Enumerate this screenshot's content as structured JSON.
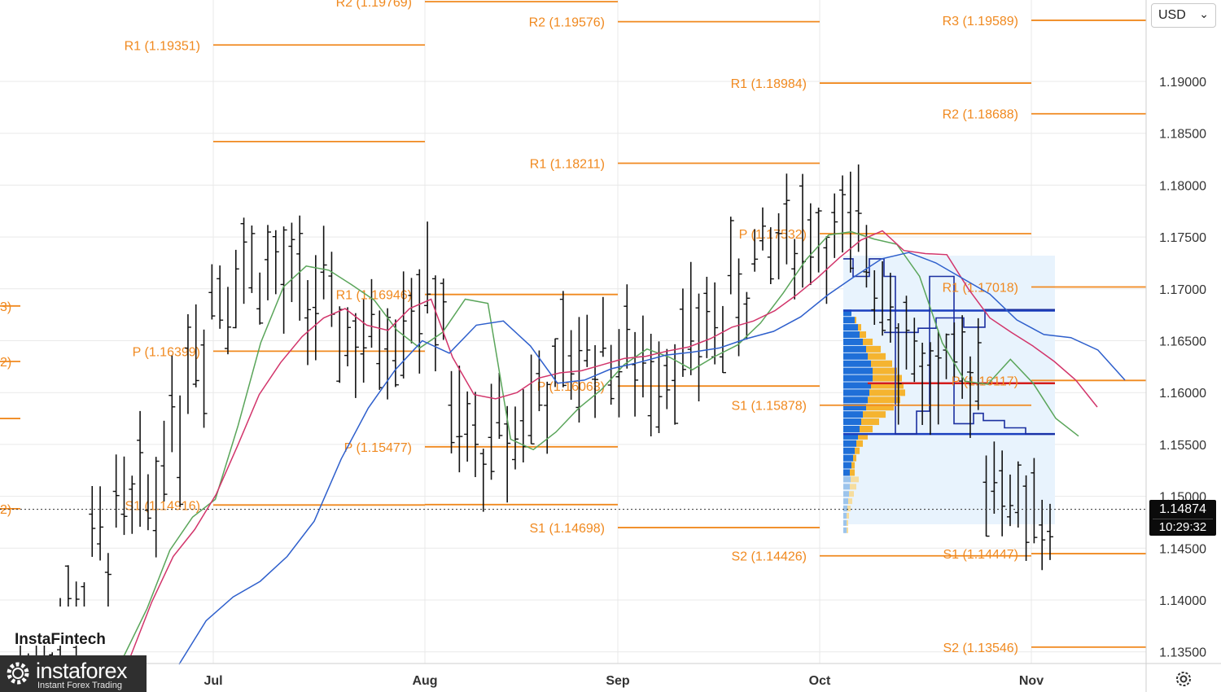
{
  "currency_selector": {
    "value": "USD"
  },
  "price_badge": {
    "price": "1.14874",
    "countdown": "10:29:32"
  },
  "branding": {
    "instafintech": "InstaFintech",
    "instaforex": "instaforex",
    "tagline": "Instant Forex Trading"
  },
  "icons": {
    "settings": "settings-gear-icon",
    "dropdown": "chevron-down-icon"
  },
  "colors": {
    "pivot": "#f0891f",
    "ma_fast": "#5aa55a",
    "ma_mid": "#d2356b",
    "ma_slow": "#2e5fcc",
    "profile_blue": "#1f6fd8",
    "profile_orange": "#f5b430",
    "value_area": "#e8f3fd",
    "poc": "#d41c1c",
    "range": "#1b2fa0"
  },
  "chart_data": {
    "type": "ohlc",
    "instrument_timeframe": "daily",
    "y_axis": {
      "ticks": [
        "1.13500",
        "1.14000",
        "1.14500",
        "1.15000",
        "1.15500",
        "1.16000",
        "1.16500",
        "1.17000",
        "1.17500",
        "1.18000",
        "1.18500",
        "1.19000"
      ],
      "ylim": [
        1.1325,
        1.2005
      ]
    },
    "x_axis": {
      "months": [
        "Jul",
        "Aug",
        "Sep",
        "Oct",
        "Nov"
      ]
    },
    "current_price": 1.14874,
    "pivot_levels": [
      {
        "period": "Jun",
        "levels": [
          {
            "name": "R1",
            "value": 1.16835,
            "label": "3)"
          },
          {
            "name": "P",
            "value": 1.1575,
            "label": ""
          },
          {
            "name": "S1",
            "value": 1.163,
            "label": "2)"
          },
          {
            "name": "S2",
            "value": 1.1488,
            "label": "2)"
          }
        ]
      },
      {
        "period": "Jul",
        "levels": [
          {
            "name": "R1",
            "value": 1.19351,
            "label": "R1 (1.19351)"
          },
          {
            "name": "R0",
            "value": 1.1842,
            "label": ""
          },
          {
            "name": "P",
            "value": 1.16399,
            "label": "P (1.16399)"
          },
          {
            "name": "S1",
            "value": 1.14916,
            "label": "S1 (1.14916)"
          }
        ]
      },
      {
        "period": "Aug",
        "levels": [
          {
            "name": "R2",
            "value": 1.19769,
            "label": "R2 (1.19769)"
          },
          {
            "name": "R1",
            "value": 1.16946,
            "label": "R1 (1.16946)"
          },
          {
            "name": "P",
            "value": 1.15477,
            "label": "P (1.15477)"
          },
          {
            "name": "S1",
            "value": 1.1492,
            "label": ""
          }
        ]
      },
      {
        "period": "Sep",
        "levels": [
          {
            "name": "R2",
            "value": 1.19576,
            "label": "R2 (1.19576)"
          },
          {
            "name": "R1",
            "value": 1.18211,
            "label": "R1 (1.18211)"
          },
          {
            "name": "P",
            "value": 1.16063,
            "label": "P (1.16063)"
          },
          {
            "name": "S1",
            "value": 1.14698,
            "label": "S1 (1.14698)"
          }
        ]
      },
      {
        "period": "Oct",
        "levels": [
          {
            "name": "R1",
            "value": 1.18984,
            "label": "R1 (1.18984)"
          },
          {
            "name": "P",
            "value": 1.17532,
            "label": "P (1.17532)"
          },
          {
            "name": "S1",
            "value": 1.15878,
            "label": "S1 (1.15878)"
          },
          {
            "name": "S2",
            "value": 1.14426,
            "label": "S2 (1.14426)"
          }
        ]
      },
      {
        "period": "Nov",
        "levels": [
          {
            "name": "R3",
            "value": 1.19589,
            "label": "R3 (1.19589)"
          },
          {
            "name": "R2",
            "value": 1.18688,
            "label": "R2 (1.18688)"
          },
          {
            "name": "R1",
            "value": 1.17018,
            "label": "R1 (1.17018)"
          },
          {
            "name": "P",
            "value": 1.16117,
            "label": "P (1.16117)"
          },
          {
            "name": "S1",
            "value": 1.14447,
            "label": "S1 (1.14447)"
          },
          {
            "name": "S2",
            "value": 1.13546,
            "label": "S2 (1.13546)"
          }
        ]
      }
    ],
    "volume_profile": {
      "high": 1.1732,
      "low": 1.1473,
      "value_area_high": 1.1679,
      "value_area_low": 1.156,
      "poc": 1.1609
    },
    "moving_averages": [
      {
        "color": "#5aa55a",
        "values": [
          1.1325,
          1.1347,
          1.1392,
          1.1448,
          1.148,
          1.1497,
          1.1568,
          1.1648,
          1.1702,
          1.1722,
          1.1718,
          1.1704,
          1.1689,
          1.166,
          1.1643,
          1.1658,
          1.169,
          1.1686,
          1.1555,
          1.1545,
          1.1562,
          1.1585,
          1.1603,
          1.1627,
          1.1642,
          1.1634,
          1.1622,
          1.1635,
          1.1646,
          1.1667,
          1.1696,
          1.1728,
          1.1752,
          1.1755,
          1.1748,
          1.1743,
          1.1712,
          1.1648,
          1.1611,
          1.1608,
          1.1632,
          1.1609,
          1.1575,
          1.1558
        ]
      },
      {
        "color": "#d2356b",
        "values": [
          1.1345,
          1.1398,
          1.1442,
          1.1468,
          1.1502,
          1.1549,
          1.1598,
          1.1629,
          1.1654,
          1.1672,
          1.1681,
          1.1665,
          1.166,
          1.1681,
          1.169,
          1.1634,
          1.1598,
          1.1594,
          1.16,
          1.1614,
          1.1619,
          1.1621,
          1.1627,
          1.1633,
          1.1635,
          1.164,
          1.1644,
          1.1652,
          1.1663,
          1.1669,
          1.1679,
          1.1694,
          1.1711,
          1.173,
          1.1747,
          1.1756,
          1.1737,
          1.1734,
          1.1733,
          1.17,
          1.1672,
          1.1658,
          1.1645,
          1.163,
          1.1612,
          1.1586
        ]
      },
      {
        "color": "#2e5fcc",
        "values": [
          1.1338,
          1.138,
          1.1403,
          1.1418,
          1.1442,
          1.1476,
          1.1536,
          1.1585,
          1.1622,
          1.165,
          1.1638,
          1.1665,
          1.1669,
          1.1645,
          1.1609,
          1.1612,
          1.1623,
          1.1629,
          1.1636,
          1.1639,
          1.1643,
          1.1652,
          1.1659,
          1.1673,
          1.1694,
          1.1712,
          1.1729,
          1.1735,
          1.1725,
          1.171,
          1.1695,
          1.167,
          1.1656,
          1.1653,
          1.1641,
          1.1612
        ]
      }
    ]
  }
}
